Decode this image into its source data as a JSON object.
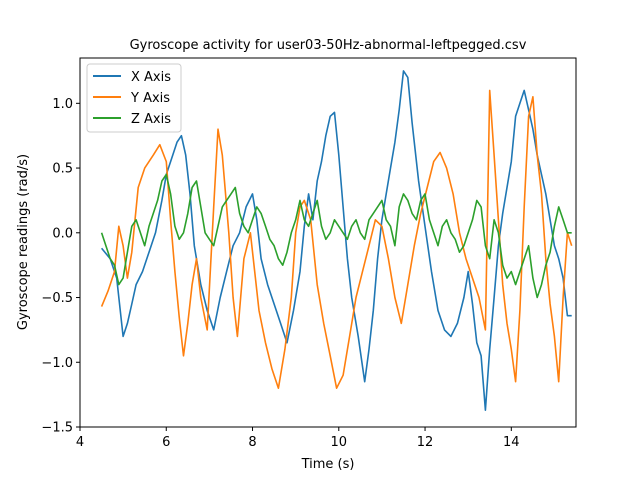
{
  "chart_data": {
    "type": "line",
    "title": "Gyroscope activity for user03-50Hz-abnormal-leftpegged.csv",
    "xlabel": "Time (s)",
    "ylabel": "Gyroscope readings (rad/s)",
    "xlim": [
      4.0,
      15.5
    ],
    "ylim": [
      -1.5,
      1.35
    ],
    "xticks": [
      4,
      6,
      8,
      10,
      12,
      14
    ],
    "yticks": [
      -1.5,
      -1.0,
      -0.5,
      0.0,
      0.5,
      1.0
    ],
    "ytick_labels": [
      "−1.5",
      "−1.0",
      "−0.5",
      "0.0",
      "0.5",
      "1.0"
    ],
    "grid": false,
    "legend": "top-left",
    "series": [
      {
        "name": "X Axis",
        "color": "#1f77b4",
        "x": [
          4.5,
          4.7,
          4.85,
          5.0,
          5.1,
          5.2,
          5.3,
          5.45,
          5.6,
          5.75,
          5.9,
          6.0,
          6.1,
          6.25,
          6.35,
          6.45,
          6.55,
          6.65,
          6.8,
          6.95,
          7.1,
          7.25,
          7.4,
          7.55,
          7.7,
          7.85,
          8.0,
          8.1,
          8.2,
          8.35,
          8.5,
          8.65,
          8.8,
          8.95,
          9.1,
          9.2,
          9.3,
          9.4,
          9.5,
          9.6,
          9.7,
          9.8,
          9.9,
          10.0,
          10.1,
          10.2,
          10.3,
          10.45,
          10.6,
          10.7,
          10.8,
          10.9,
          11.0,
          11.1,
          11.2,
          11.3,
          11.4,
          11.5,
          11.6,
          11.7,
          11.85,
          12.0,
          12.15,
          12.3,
          12.45,
          12.6,
          12.75,
          12.9,
          13.0,
          13.1,
          13.2,
          13.3,
          13.4,
          13.5,
          13.6,
          13.7,
          13.8,
          13.9,
          14.0,
          14.1,
          14.2,
          14.3,
          14.4,
          14.5,
          14.6,
          14.7,
          14.8,
          14.9,
          15.0,
          15.1,
          15.2,
          15.3,
          15.4
        ],
        "y": [
          -0.12,
          -0.2,
          -0.35,
          -0.8,
          -0.7,
          -0.55,
          -0.4,
          -0.3,
          -0.15,
          0.0,
          0.25,
          0.45,
          0.55,
          0.7,
          0.75,
          0.6,
          0.3,
          -0.1,
          -0.4,
          -0.6,
          -0.75,
          -0.5,
          -0.3,
          -0.1,
          0.0,
          0.2,
          0.3,
          0.1,
          -0.2,
          -0.4,
          -0.55,
          -0.7,
          -0.85,
          -0.6,
          -0.3,
          0.05,
          0.3,
          0.1,
          0.4,
          0.55,
          0.75,
          0.9,
          0.93,
          0.6,
          0.2,
          -0.2,
          -0.5,
          -0.8,
          -1.15,
          -0.9,
          -0.6,
          -0.2,
          0.1,
          0.3,
          0.5,
          0.7,
          0.95,
          1.25,
          1.2,
          0.85,
          0.4,
          0.05,
          -0.3,
          -0.6,
          -0.75,
          -0.8,
          -0.7,
          -0.5,
          -0.3,
          -0.55,
          -0.85,
          -0.95,
          -1.37,
          -0.9,
          -0.5,
          -0.1,
          0.15,
          0.35,
          0.55,
          0.9,
          1.0,
          1.1,
          0.95,
          0.8,
          0.6,
          0.45,
          0.3,
          0.1,
          -0.1,
          -0.2,
          -0.35,
          -0.64,
          -0.64
        ]
      },
      {
        "name": "Y Axis",
        "color": "#ff7f0e",
        "x": [
          4.5,
          4.65,
          4.8,
          4.9,
          5.0,
          5.1,
          5.2,
          5.35,
          5.5,
          5.6,
          5.7,
          5.85,
          6.0,
          6.1,
          6.2,
          6.3,
          6.4,
          6.5,
          6.6,
          6.7,
          6.8,
          6.95,
          7.1,
          7.2,
          7.3,
          7.45,
          7.55,
          7.65,
          7.8,
          7.95,
          8.05,
          8.15,
          8.3,
          8.45,
          8.6,
          8.75,
          8.9,
          9.0,
          9.1,
          9.2,
          9.35,
          9.5,
          9.65,
          9.8,
          9.95,
          10.1,
          10.25,
          10.4,
          10.55,
          10.7,
          10.85,
          11.0,
          11.15,
          11.3,
          11.45,
          11.6,
          11.75,
          11.9,
          12.05,
          12.2,
          12.35,
          12.5,
          12.65,
          12.8,
          12.95,
          13.1,
          13.25,
          13.4,
          13.5,
          13.6,
          13.7,
          13.8,
          13.9,
          14.0,
          14.1,
          14.2,
          14.3,
          14.4,
          14.5,
          14.6,
          14.7,
          14.8,
          14.9,
          15.0,
          15.1,
          15.2,
          15.3,
          15.4
        ],
        "y": [
          -0.57,
          -0.45,
          -0.3,
          0.05,
          -0.1,
          -0.35,
          -0.15,
          0.35,
          0.5,
          0.55,
          0.6,
          0.68,
          0.55,
          0.1,
          -0.3,
          -0.65,
          -0.95,
          -0.7,
          -0.4,
          -0.2,
          -0.5,
          -0.75,
          0.2,
          0.8,
          0.6,
          0.0,
          -0.5,
          -0.8,
          -0.2,
          0.0,
          -0.3,
          -0.6,
          -0.85,
          -1.05,
          -1.2,
          -0.9,
          -0.5,
          0.0,
          0.2,
          0.25,
          0.1,
          -0.4,
          -0.7,
          -0.95,
          -1.2,
          -1.1,
          -0.8,
          -0.5,
          -0.3,
          -0.1,
          0.1,
          0.05,
          -0.2,
          -0.5,
          -0.7,
          -0.4,
          -0.1,
          0.15,
          0.35,
          0.55,
          0.62,
          0.5,
          0.3,
          0.0,
          -0.2,
          -0.35,
          -0.5,
          -0.75,
          1.1,
          0.6,
          0.1,
          -0.4,
          -0.7,
          -0.9,
          -1.15,
          -0.6,
          0.2,
          0.9,
          1.05,
          0.6,
          0.3,
          -0.2,
          -0.55,
          -0.8,
          -1.15,
          -0.5,
          0.0,
          -0.1
        ]
      },
      {
        "name": "Z Axis",
        "color": "#2ca02c",
        "x": [
          4.5,
          4.6,
          4.7,
          4.8,
          4.9,
          5.0,
          5.1,
          5.2,
          5.3,
          5.4,
          5.5,
          5.6,
          5.7,
          5.8,
          5.9,
          6.0,
          6.1,
          6.2,
          6.3,
          6.4,
          6.5,
          6.6,
          6.7,
          6.8,
          6.9,
          7.0,
          7.1,
          7.2,
          7.3,
          7.4,
          7.5,
          7.6,
          7.7,
          7.8,
          7.9,
          8.0,
          8.1,
          8.2,
          8.3,
          8.4,
          8.5,
          8.6,
          8.7,
          8.8,
          8.9,
          9.0,
          9.1,
          9.2,
          9.3,
          9.4,
          9.5,
          9.6,
          9.7,
          9.8,
          9.9,
          10.0,
          10.1,
          10.2,
          10.3,
          10.4,
          10.5,
          10.6,
          10.7,
          10.8,
          10.9,
          11.0,
          11.1,
          11.2,
          11.3,
          11.4,
          11.5,
          11.6,
          11.7,
          11.8,
          11.9,
          12.0,
          12.1,
          12.2,
          12.3,
          12.4,
          12.5,
          12.6,
          12.7,
          12.8,
          12.9,
          13.0,
          13.1,
          13.2,
          13.3,
          13.4,
          13.5,
          13.6,
          13.7,
          13.8,
          13.9,
          14.0,
          14.1,
          14.2,
          14.3,
          14.4,
          14.5,
          14.6,
          14.7,
          14.8,
          14.9,
          15.0,
          15.1,
          15.2,
          15.3,
          15.4
        ],
        "y": [
          0.0,
          -0.1,
          -0.2,
          -0.25,
          -0.4,
          -0.35,
          -0.15,
          0.05,
          0.1,
          0.0,
          -0.1,
          0.05,
          0.15,
          0.25,
          0.4,
          0.45,
          0.3,
          0.05,
          -0.05,
          0.0,
          0.15,
          0.35,
          0.4,
          0.2,
          0.0,
          -0.05,
          -0.1,
          0.05,
          0.2,
          0.25,
          0.3,
          0.35,
          0.15,
          0.05,
          0.0,
          0.1,
          0.2,
          0.15,
          0.05,
          -0.05,
          -0.1,
          -0.2,
          -0.25,
          -0.15,
          0.0,
          0.1,
          0.25,
          0.1,
          0.05,
          0.15,
          0.25,
          0.05,
          -0.05,
          0.0,
          0.1,
          0.05,
          0.0,
          -0.05,
          0.05,
          0.1,
          0.0,
          -0.05,
          0.1,
          0.15,
          0.2,
          0.25,
          0.1,
          0.05,
          -0.1,
          0.2,
          0.3,
          0.25,
          0.15,
          0.1,
          0.25,
          0.3,
          0.1,
          0.0,
          -0.1,
          0.05,
          0.1,
          0.0,
          -0.05,
          -0.15,
          -0.1,
          0.0,
          0.1,
          0.25,
          0.2,
          -0.1,
          -0.2,
          0.1,
          0.0,
          -0.25,
          -0.35,
          -0.3,
          -0.4,
          -0.3,
          -0.2,
          -0.1,
          -0.35,
          -0.5,
          -0.4,
          -0.25,
          -0.15,
          0.05,
          0.2,
          0.1,
          0.0,
          0.0
        ]
      }
    ]
  }
}
